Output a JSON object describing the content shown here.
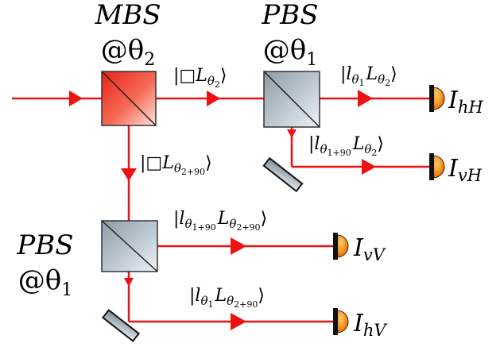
{
  "mbs": {
    "label": "MBS",
    "setting_prefix": "@θ",
    "setting_sub": "2"
  },
  "pbs_top": {
    "label": "PBS",
    "setting_prefix": "@θ",
    "setting_sub": "1"
  },
  "pbs_bottom": {
    "label": "PBS",
    "setting_prefix": "@θ",
    "setting_sub": "1"
  },
  "kets": {
    "mbs_to_pbs": {
      "main": "|□L",
      "sub_base": "θ",
      "sub": "2",
      "close": "⟩"
    },
    "mbs_down": {
      "main": "|□L",
      "sub_base": "θ",
      "sub": "2+90",
      "close": "⟩"
    },
    "hH": {
      "l": "|l",
      "l_sub_base": "θ",
      "l_sub": "1",
      "L": "L",
      "L_sub_base": "θ",
      "L_sub": "2",
      "close": "⟩"
    },
    "vH": {
      "l": "|l",
      "l_sub_base": "θ",
      "l_sub": "1+90",
      "L": "L",
      "L_sub_base": "θ",
      "L_sub": "2",
      "close": "⟩"
    },
    "vV": {
      "l": "|l",
      "l_sub_base": "θ",
      "l_sub": "1+90",
      "L": "L",
      "L_sub_base": "θ",
      "L_sub": "2+90",
      "close": "⟩"
    },
    "hV": {
      "l": "|l",
      "l_sub_base": "θ",
      "l_sub": "1",
      "L": "L",
      "L_sub_base": "θ",
      "L_sub": "2+90",
      "close": "⟩"
    }
  },
  "detectors": {
    "hH": {
      "main": "I",
      "sub": "hH"
    },
    "vH": {
      "main": "I",
      "sub": "vH"
    },
    "vV": {
      "main": "I",
      "sub": "vV"
    },
    "hV": {
      "main": "I",
      "sub": "hV"
    }
  },
  "colors": {
    "beam": "#ee1111",
    "mbs_fill_dark": "#e8231a",
    "mbs_fill_light": "#ffe3dc",
    "pbs_fill_dark": "#8e9ba6",
    "pbs_fill_light": "#e8eef3",
    "detector_dark": "#b94a00",
    "detector_light": "#ffb24a"
  }
}
